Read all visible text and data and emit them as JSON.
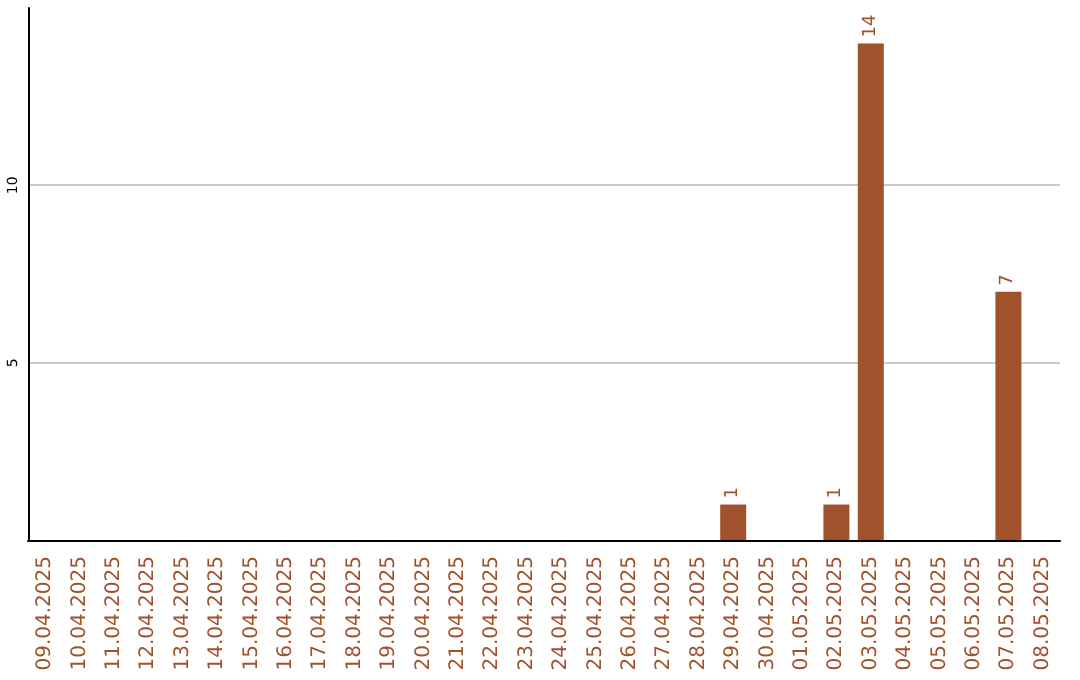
{
  "chart_data": {
    "type": "bar",
    "categories": [
      "09.04.2025",
      "10.04.2025",
      "11.04.2025",
      "12.04.2025",
      "13.04.2025",
      "14.04.2025",
      "15.04.2025",
      "16.04.2025",
      "17.04.2025",
      "18.04.2025",
      "19.04.2025",
      "20.04.2025",
      "21.04.2025",
      "22.04.2025",
      "23.04.2025",
      "24.04.2025",
      "25.04.2025",
      "26.04.2025",
      "27.04.2025",
      "28.04.2025",
      "29.04.2025",
      "30.04.2025",
      "01.05.2025",
      "02.05.2025",
      "03.05.2025",
      "04.05.2025",
      "05.05.2025",
      "06.05.2025",
      "07.05.2025",
      "08.05.2025"
    ],
    "values": [
      0,
      0,
      0,
      0,
      0,
      0,
      0,
      0,
      0,
      0,
      0,
      0,
      0,
      0,
      0,
      0,
      0,
      0,
      0,
      0,
      1,
      0,
      0,
      1,
      14,
      0,
      0,
      0,
      7,
      0
    ],
    "value_labels": [
      null,
      null,
      null,
      null,
      null,
      null,
      null,
      null,
      null,
      null,
      null,
      null,
      null,
      null,
      null,
      null,
      null,
      null,
      null,
      null,
      "1",
      null,
      null,
      "1",
      "14",
      null,
      null,
      null,
      "7",
      null
    ],
    "color": "#a0522d",
    "ylim": [
      0,
      15
    ],
    "yticks": [
      5,
      10
    ],
    "grid": "y"
  }
}
